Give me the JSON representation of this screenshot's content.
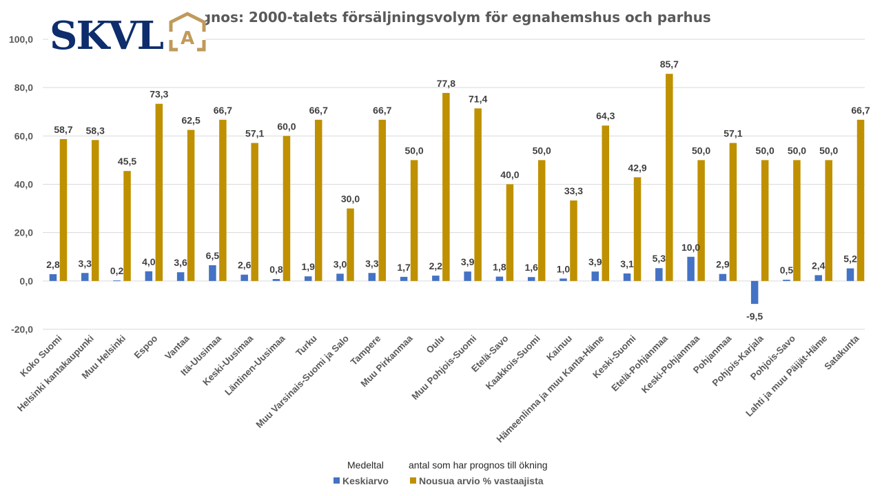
{
  "chart_data": {
    "type": "bar",
    "title": "Prognos: 2000-talets försäljningsvolym för egnahemshus och parhus",
    "visible_title": "ognos: 2000-talets försäljningsvolym för egnahemshus och parhus",
    "xlabel": "",
    "ylabel": "",
    "ylim": [
      -20,
      100
    ],
    "yticks": [
      100,
      80,
      60,
      40,
      20,
      0,
      -20
    ],
    "ytick_labels": [
      "100,0",
      "80,0",
      "60,0",
      "40,0",
      "20,0",
      "0,0",
      "-20,0"
    ],
    "grid": true,
    "legend_position": "bottom",
    "categories": [
      "Koko Suomi",
      "Helsinki kantakaupunki",
      "Muu Helsinki",
      "Espoo",
      "Vantaa",
      "Itä-Uusimaa",
      "Keski-Uusimaa",
      "Läntinen-Uusimaa",
      "Turku",
      "Muu Varsinais-Suomi ja Salo",
      "Tampere",
      "Muu Pirkanmaa",
      "Oulu",
      "Muu Pohjois-Suomi",
      "Etelä-Savo",
      "Kaakkois-Suomi",
      "Kainuu",
      "Hämeenlinna ja muu Kanta-Häme",
      "Keski-Suomi",
      "Etelä-Pohjanmaa",
      "Keski-Pohjanmaa",
      "Pohjanmaa",
      "Pohjois-Karjala",
      "Pohjois-Savo",
      "Lahti ja muu Päijät-Häme",
      "Satakunta"
    ],
    "series": [
      {
        "name": "Keskiarvo",
        "color": "#4472c4",
        "values": [
          2.8,
          3.3,
          0.2,
          4.0,
          3.6,
          6.5,
          2.6,
          0.8,
          1.9,
          3.0,
          3.3,
          1.7,
          2.2,
          3.9,
          1.8,
          1.6,
          1.0,
          3.9,
          3.1,
          5.3,
          10.0,
          2.9,
          -9.5,
          0.5,
          2.4,
          5.2
        ],
        "labels": [
          "2,8",
          "3,3",
          "0,2",
          "4,0",
          "3,6",
          "6,5",
          "2,6",
          "0,8",
          "1,9",
          "3,0",
          "3,3",
          "1,7",
          "2,2",
          "3,9",
          "1,8",
          "1,6",
          "1,0",
          "3,9",
          "3,1",
          "5,3",
          "10,0",
          "2,9",
          "-9,5",
          "0,5",
          "2,4",
          "5,2"
        ]
      },
      {
        "name": "Nousua arvio % vastaajista",
        "color": "#bf9000",
        "values": [
          58.7,
          58.3,
          45.5,
          73.3,
          62.5,
          66.7,
          57.1,
          60.0,
          66.7,
          30.0,
          66.7,
          50.0,
          77.8,
          71.4,
          40.0,
          50.0,
          33.3,
          64.3,
          42.9,
          85.7,
          50.0,
          57.1,
          50.0,
          50.0,
          50.0,
          66.7
        ],
        "labels": [
          "58,7",
          "58,3",
          "45,5",
          "73,3",
          "62,5",
          "66,7",
          "57,1",
          "60,0",
          "66,7",
          "30,0",
          "66,7",
          "50,0",
          "77,8",
          "71,4",
          "40,0",
          "50,0",
          "33,3",
          "64,3",
          "42,9",
          "85,7",
          "50,0",
          "57,1",
          "50,0",
          "50,0",
          "50,0",
          "66,7"
        ]
      }
    ],
    "legend": {
      "annotation_left": "Medeltal",
      "annotation_right": "antal som har prognos till ökning",
      "entries": [
        "Keskiarvo",
        "Nousua arvio % vastaajista"
      ]
    }
  },
  "logo": {
    "text": "SKVL",
    "emblem_letter": "A",
    "primary_color": "#0d2d6c",
    "accent_color": "#c09a5b"
  }
}
